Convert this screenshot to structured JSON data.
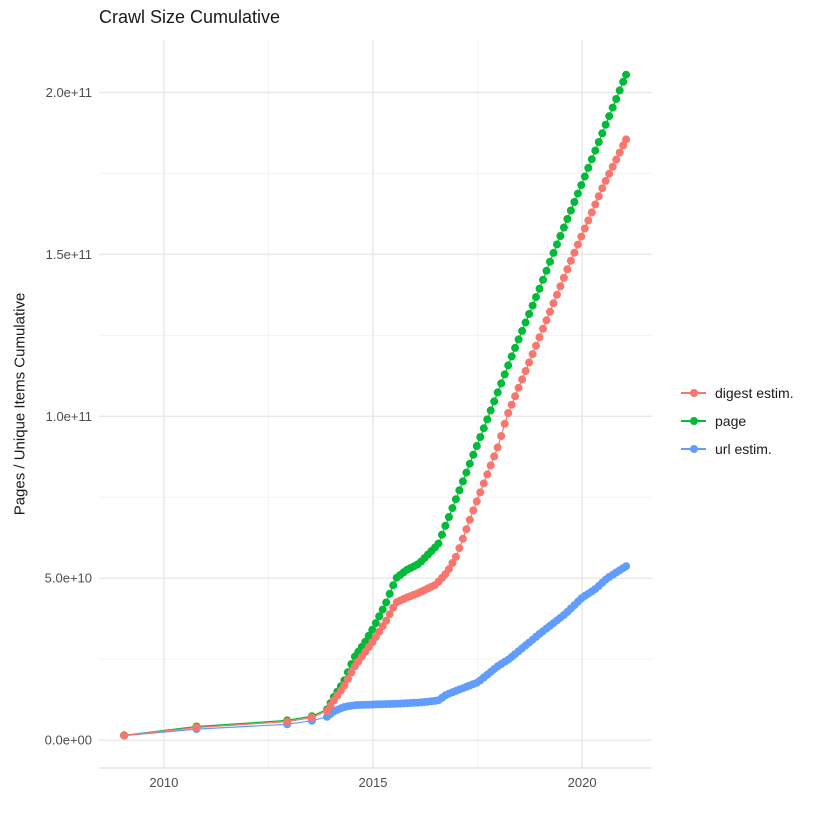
{
  "title": "Crawl Size Cumulative",
  "axes": {
    "y_title": "Pages / Unique Items Cumulative",
    "x_title": ""
  },
  "legend": {
    "position": "right",
    "items": [
      {
        "label": "digest estim.",
        "color": "#F8766D"
      },
      {
        "label": "page",
        "color": "#00BA38"
      },
      {
        "label": "url estim.",
        "color": "#619CFF"
      }
    ]
  },
  "style": {
    "background": "#ffffff",
    "grid_major_color": "#E8E8E8",
    "grid_minor_color": "#F3F3F3",
    "axis_line_color": "#DEDEDE",
    "tick_label_color": "#4d4d4d",
    "title_color": "#1a1a1a",
    "point_radius": 4,
    "line_width": 1.2
  },
  "chart_data": {
    "type": "line",
    "title": "Crawl Size Cumulative",
    "xlabel": "",
    "ylabel": "Pages / Unique Items Cumulative",
    "x_unit": "year",
    "y_unit": "count (values stored in billions, 1e9)",
    "xlim": [
      2008.45,
      2021.67
    ],
    "ylim_e9": [
      -8.6,
      216.2
    ],
    "grid": true,
    "x_major_ticks": [
      {
        "value": 2010,
        "label": "2010"
      },
      {
        "value": 2015,
        "label": "2015"
      },
      {
        "value": 2020,
        "label": "2020"
      }
    ],
    "x_minor_ticks": [
      2012.5,
      2017.5
    ],
    "y_major_ticks": [
      {
        "value_e9": 0,
        "label": "0.0e+00"
      },
      {
        "value_e9": 50,
        "label": "5.0e+10"
      },
      {
        "value_e9": 100,
        "label": "1.0e+11"
      },
      {
        "value_e9": 150,
        "label": "1.5e+11"
      },
      {
        "value_e9": 200,
        "label": "2.0e+11"
      }
    ],
    "y_minor_ticks_e9": [
      25,
      75,
      125,
      175
    ],
    "point_interval_years": 0.0833,
    "draw_order": [
      "url estim.",
      "page",
      "digest estim."
    ],
    "series": [
      {
        "name": "digest estim.",
        "color": "#F8766D",
        "sparse_points_e9": [
          [
            2009.05,
            1.4
          ],
          [
            2010.78,
            3.9
          ],
          [
            2012.95,
            5.7
          ],
          [
            2013.54,
            7.0
          ]
        ],
        "anchor_points_e9": [
          [
            2013.9,
            9.0
          ],
          [
            2014.05,
            12
          ],
          [
            2014.3,
            16.5
          ],
          [
            2014.55,
            22.5
          ],
          [
            2014.8,
            27
          ],
          [
            2015.0,
            30.5
          ],
          [
            2015.3,
            36.5
          ],
          [
            2015.55,
            42.5
          ],
          [
            2015.8,
            44
          ],
          [
            2016.1,
            45.5
          ],
          [
            2016.5,
            48
          ],
          [
            2016.77,
            51.8
          ],
          [
            2017.0,
            57
          ],
          [
            2017.4,
            71
          ],
          [
            2018.0,
            91
          ],
          [
            2018.2,
            100
          ],
          [
            2019.0,
            125
          ],
          [
            2019.73,
            148
          ],
          [
            2020.5,
            171
          ],
          [
            2021.05,
            185.5
          ]
        ]
      },
      {
        "name": "page",
        "color": "#00BA38",
        "sparse_points_e9": [
          [
            2009.05,
            1.5
          ],
          [
            2010.78,
            4.2
          ],
          [
            2012.95,
            6.1
          ],
          [
            2013.54,
            7.4
          ]
        ],
        "anchor_points_e9": [
          [
            2013.9,
            9.5
          ],
          [
            2014.05,
            13
          ],
          [
            2014.3,
            18
          ],
          [
            2014.55,
            25.5
          ],
          [
            2014.8,
            30
          ],
          [
            2015.0,
            34.5
          ],
          [
            2015.3,
            42
          ],
          [
            2015.55,
            50
          ],
          [
            2015.8,
            52.5
          ],
          [
            2016.1,
            54.5
          ],
          [
            2016.56,
            60.5
          ],
          [
            2017.0,
            75
          ],
          [
            2017.73,
            99
          ],
          [
            2018.33,
            119
          ],
          [
            2019.0,
            140
          ],
          [
            2019.3,
            150
          ],
          [
            2020.0,
            172
          ],
          [
            2020.5,
            188
          ],
          [
            2021.05,
            205.5
          ]
        ]
      },
      {
        "name": "url estim.",
        "color": "#619CFF",
        "sparse_points_e9": [
          [
            2009.05,
            1.4
          ],
          [
            2010.78,
            3.4
          ],
          [
            2012.95,
            4.9
          ],
          [
            2013.54,
            6.0
          ]
        ],
        "anchor_points_e9": [
          [
            2013.9,
            7.2
          ],
          [
            2014.05,
            8.8
          ],
          [
            2014.3,
            10.2
          ],
          [
            2014.55,
            10.8
          ],
          [
            2015.0,
            11.0
          ],
          [
            2015.5,
            11.2
          ],
          [
            2016.1,
            11.6
          ],
          [
            2016.55,
            12.2
          ],
          [
            2016.75,
            14.0
          ],
          [
            2017.0,
            15.3
          ],
          [
            2017.5,
            17.8
          ],
          [
            2018.0,
            23.0
          ],
          [
            2018.25,
            25.0
          ],
          [
            2019.0,
            33.0
          ],
          [
            2019.6,
            39.0
          ],
          [
            2020.0,
            44.0
          ],
          [
            2020.3,
            46.5
          ],
          [
            2020.6,
            50.0
          ],
          [
            2021.05,
            53.7
          ]
        ]
      }
    ]
  }
}
